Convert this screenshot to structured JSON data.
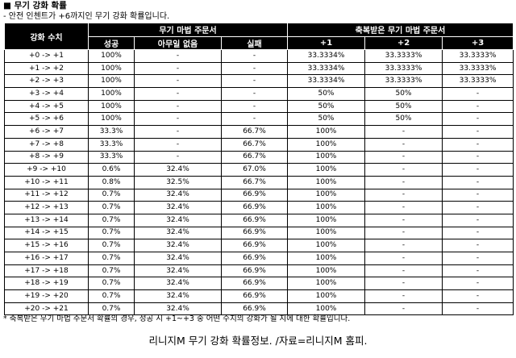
{
  "title": "■ 무기 강화 확률",
  "subtitle": "- 안전 인첸트가 +6까지인 무기 강화 확률입니다.",
  "headers": {
    "level": "강화 수치",
    "none_group": "무기 마법 주문서",
    "blessed_group": "축복받은 무기 마법 주문서",
    "success": "성공",
    "nothing": "아무일 없음",
    "fail": "실패",
    "plus1": "+1",
    "plus2": "+2",
    "plus3": "+3"
  },
  "rows": [
    [
      "+0 -> +1",
      "100%",
      "-",
      "-",
      "33.3334%",
      "33.3333%",
      "33.3333%"
    ],
    [
      "+1 -> +2",
      "100%",
      "-",
      "-",
      "33.3334%",
      "33.3333%",
      "33.3333%"
    ],
    [
      "+2 -> +3",
      "100%",
      "-",
      "-",
      "33.3334%",
      "33.3333%",
      "33.3333%"
    ],
    [
      "+3 -> +4",
      "100%",
      "-",
      "-",
      "50%",
      "50%",
      "-"
    ],
    [
      "+4 -> +5",
      "100%",
      "-",
      "-",
      "50%",
      "50%",
      "-"
    ],
    [
      "+5 -> +6",
      "100%",
      "-",
      "-",
      "50%",
      "50%",
      "-"
    ],
    [
      "+6 -> +7",
      "33.3%",
      "-",
      "66.7%",
      "100%",
      "-",
      "-"
    ],
    [
      "+7 -> +8",
      "33.3%",
      "-",
      "66.7%",
      "100%",
      "-",
      "-"
    ],
    [
      "+8 -> +9",
      "33.3%",
      "-",
      "66.7%",
      "100%",
      "-",
      "-"
    ],
    [
      "+9 -> +10",
      "0.6%",
      "32.4%",
      "67.0%",
      "100%",
      "-",
      "-"
    ],
    [
      "+10 -> +11",
      "0.8%",
      "32.5%",
      "66.7%",
      "100%",
      "-",
      "-"
    ],
    [
      "+11 -> +12",
      "0.7%",
      "32.4%",
      "66.9%",
      "100%",
      "-",
      "-"
    ],
    [
      "+12 -> +13",
      "0.7%",
      "32.4%",
      "66.9%",
      "100%",
      "-",
      "-"
    ],
    [
      "+13 -> +14",
      "0.7%",
      "32.4%",
      "66.9%",
      "100%",
      "-",
      "-"
    ],
    [
      "+14 -> +15",
      "0.7%",
      "32.4%",
      "66.9%",
      "100%",
      "-",
      "-"
    ],
    [
      "+15 -> +16",
      "0.7%",
      "32.4%",
      "66.9%",
      "100%",
      "-",
      "-"
    ],
    [
      "+16 -> +17",
      "0.7%",
      "32.4%",
      "66.9%",
      "100%",
      "-",
      "-"
    ],
    [
      "+17 -> +18",
      "0.7%",
      "32.4%",
      "66.9%",
      "100%",
      "-",
      "-"
    ],
    [
      "+18 -> +19",
      "0.7%",
      "32.4%",
      "66.9%",
      "100%",
      "-",
      "-"
    ],
    [
      "+19 -> +20",
      "0.7%",
      "32.4%",
      "66.9%",
      "100%",
      "-",
      "-"
    ],
    [
      "+20 -> +21",
      "0.7%",
      "32.4%",
      "66.9%",
      "100%",
      "-",
      "-"
    ]
  ],
  "footnote": "* 축복받은 무기 마법 주문서 확률의 경우, 성공 시 +1~+3 중 어떤 수치의 강화가 될 지에 대한 확률입니다.",
  "caption": "리니지M 무기 강화 확률정보. /자료=리니지M 홈피.",
  "colors": {
    "header_bg": "#000000",
    "header_text": "#ffffff",
    "cell_border": "#000000"
  }
}
